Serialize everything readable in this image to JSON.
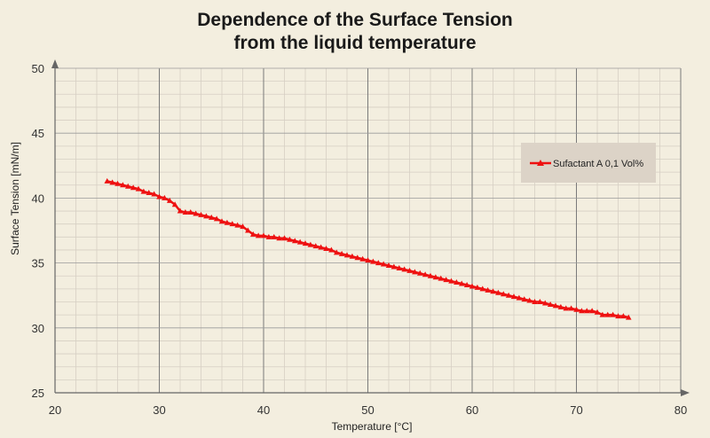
{
  "chart_data": {
    "type": "line",
    "title_line1": "Dependence of the Surface Tension",
    "title_line2": "from the liquid temperature",
    "xlabel": "Temperature [°C]",
    "ylabel": "Surface Tension [mN/m]",
    "xlim": [
      20,
      80
    ],
    "ylim": [
      25,
      50
    ],
    "xticks": [
      20,
      30,
      40,
      50,
      60,
      70,
      80
    ],
    "yticks": [
      25,
      30,
      35,
      40,
      45,
      50
    ],
    "minor_x_step": 2,
    "minor_y_step": 1,
    "legend_position": "right",
    "series": [
      {
        "name": "Sufactant A 0,1 Vol%",
        "color": "#ee1111",
        "marker": "triangle",
        "x": [
          25,
          25.5,
          26,
          26.5,
          27,
          27.5,
          28,
          28.5,
          29,
          29.5,
          30,
          30.5,
          31,
          31.5,
          32,
          32.5,
          33,
          33.5,
          34,
          34.5,
          35,
          35.5,
          36,
          36.5,
          37,
          37.5,
          38,
          38.5,
          39,
          39.5,
          40,
          40.5,
          41,
          41.5,
          42,
          42.5,
          43,
          43.5,
          44,
          44.5,
          45,
          45.5,
          46,
          46.5,
          47,
          47.5,
          48,
          48.5,
          49,
          49.5,
          50,
          50.5,
          51,
          51.5,
          52,
          52.5,
          53,
          53.5,
          54,
          54.5,
          55,
          55.5,
          56,
          56.5,
          57,
          57.5,
          58,
          58.5,
          59,
          59.5,
          60,
          60.5,
          61,
          61.5,
          62,
          62.5,
          63,
          63.5,
          64,
          64.5,
          65,
          65.5,
          66,
          66.5,
          67,
          67.5,
          68,
          68.5,
          69,
          69.5,
          70,
          70.5,
          71,
          71.5,
          72,
          72.5,
          73,
          73.5,
          74,
          74.5,
          75
        ],
        "y": [
          41.3,
          41.2,
          41.1,
          41.0,
          40.9,
          40.8,
          40.7,
          40.5,
          40.4,
          40.3,
          40.1,
          40.0,
          39.8,
          39.5,
          39.0,
          38.9,
          38.9,
          38.8,
          38.7,
          38.6,
          38.5,
          38.4,
          38.2,
          38.1,
          38.0,
          37.9,
          37.8,
          37.5,
          37.2,
          37.1,
          37.1,
          37.0,
          37.0,
          36.9,
          36.9,
          36.8,
          36.7,
          36.6,
          36.5,
          36.4,
          36.3,
          36.2,
          36.1,
          36.0,
          35.8,
          35.7,
          35.6,
          35.5,
          35.4,
          35.3,
          35.2,
          35.1,
          35.0,
          34.9,
          34.8,
          34.7,
          34.6,
          34.5,
          34.4,
          34.3,
          34.2,
          34.1,
          34.0,
          33.9,
          33.8,
          33.7,
          33.6,
          33.5,
          33.4,
          33.3,
          33.2,
          33.1,
          33.0,
          32.9,
          32.8,
          32.7,
          32.6,
          32.5,
          32.4,
          32.3,
          32.2,
          32.1,
          32.0,
          32.0,
          31.9,
          31.8,
          31.7,
          31.6,
          31.5,
          31.5,
          31.4,
          31.3,
          31.3,
          31.3,
          31.2,
          31.0,
          31.0,
          31.0,
          30.9,
          30.9,
          30.8
        ]
      }
    ]
  }
}
